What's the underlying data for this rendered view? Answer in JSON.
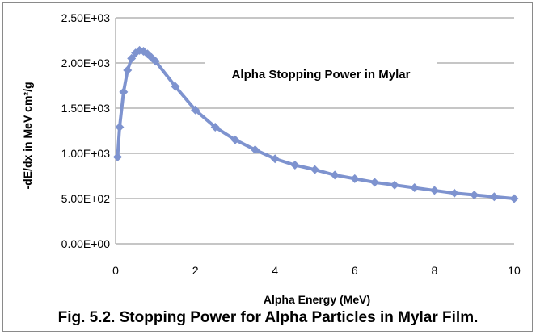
{
  "caption": "Fig. 5.2. Stopping Power for Alpha Particles in Mylar Film.",
  "chart_data": {
    "type": "scatter",
    "title": "Alpha Stopping Power in Mylar",
    "xlabel": "Alpha Energy (MeV)",
    "ylabel": "-dE/dx in MeV cm²/g",
    "xlim": [
      0,
      10
    ],
    "ylim": [
      0,
      2500
    ],
    "x_ticks": [
      "0",
      "2",
      "4",
      "6",
      "8",
      "10"
    ],
    "y_ticks": [
      "0.00E+00",
      "5.00E+02",
      "1.00E+03",
      "1.50E+03",
      "2.00E+03",
      "2.50E+03"
    ],
    "grid": "horizontal",
    "legend": "none",
    "marker": "diamond",
    "color": "#7e93cf",
    "series": [
      {
        "x": [
          0.05,
          0.1,
          0.2,
          0.3,
          0.4,
          0.5,
          0.6,
          0.7,
          0.8,
          0.9,
          1.0,
          1.5,
          2.0,
          2.5,
          3.0,
          3.5,
          4.0,
          4.5,
          5.0,
          5.5,
          6.0,
          6.5,
          7.0,
          7.5,
          8.0,
          8.5,
          9.0,
          9.5,
          10.0
        ],
        "y": [
          960,
          1290,
          1680,
          1920,
          2050,
          2110,
          2140,
          2130,
          2100,
          2060,
          2020,
          1740,
          1480,
          1290,
          1150,
          1040,
          940,
          870,
          820,
          760,
          720,
          680,
          650,
          620,
          590,
          560,
          540,
          520,
          500
        ]
      }
    ]
  }
}
